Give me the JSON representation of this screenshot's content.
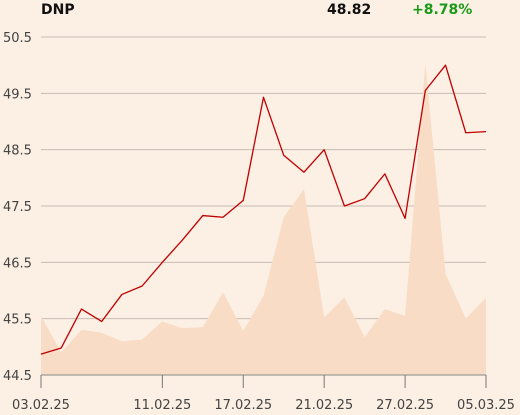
{
  "header": {
    "ticker": "DNP",
    "price": "48.82",
    "change": "+8.78%"
  },
  "colors": {
    "background": "#fcefe3",
    "price_line": "#c00000",
    "volume_area": "#f8dcc6",
    "change_positive": "#1a9a1a",
    "grid": "#c7bdb5",
    "axis_text": "#444444"
  },
  "chart_data": {
    "type": "line",
    "title": "",
    "xlabel": "",
    "ylabel": "",
    "ylim": [
      44.5,
      50.5
    ],
    "yticks": [
      "44.5",
      "45.5",
      "46.5",
      "47.5",
      "48.5",
      "49.5",
      "50.5"
    ],
    "x": [
      "03.02.25",
      "04.02.25",
      "05.02.25",
      "06.02.25",
      "07.02.25",
      "10.02.25",
      "11.02.25",
      "12.02.25",
      "13.02.25",
      "14.02.25",
      "17.02.25",
      "18.02.25",
      "19.02.25",
      "20.02.25",
      "21.02.25",
      "24.02.25",
      "25.02.25",
      "26.02.25",
      "27.02.25",
      "28.02.25",
      "03.03.25",
      "04.03.25",
      "05.03.25"
    ],
    "xticks": [
      "03.02.25",
      "11.02.25",
      "17.02.25",
      "21.02.25",
      "27.02.25",
      "05.03.25"
    ],
    "series": [
      {
        "role": "price",
        "values": [
          44.87,
          44.98,
          45.67,
          45.45,
          45.93,
          46.08,
          46.5,
          46.9,
          47.33,
          47.3,
          47.6,
          49.43,
          48.4,
          48.1,
          48.5,
          47.5,
          47.63,
          48.07,
          47.28,
          49.55,
          50.0,
          48.8,
          48.82
        ]
      },
      {
        "role": "volume",
        "values": [
          45.55,
          44.9,
          45.3,
          45.25,
          45.1,
          45.13,
          45.45,
          45.33,
          45.35,
          45.97,
          45.28,
          45.9,
          47.3,
          47.8,
          45.52,
          45.88,
          45.17,
          45.67,
          45.55,
          50.02,
          46.3,
          45.5,
          45.87
        ]
      }
    ]
  }
}
